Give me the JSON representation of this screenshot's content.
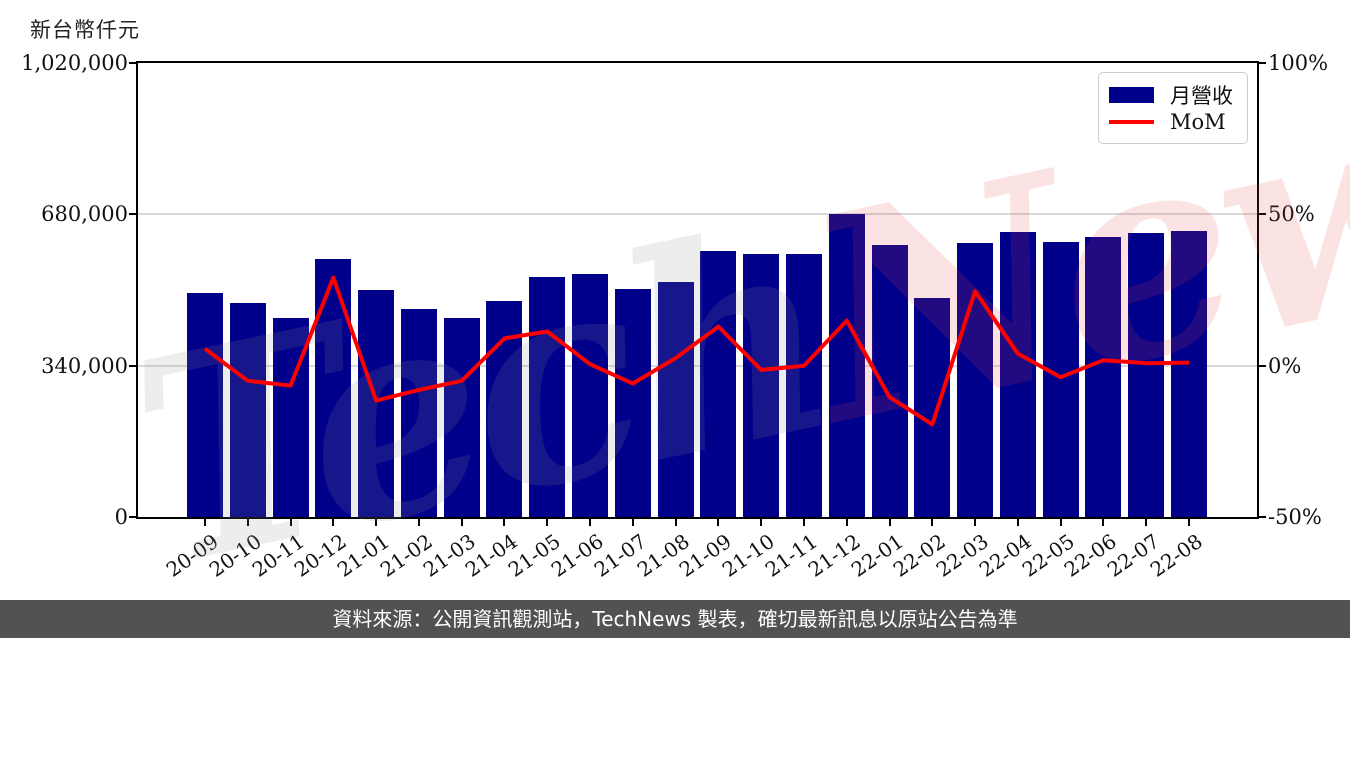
{
  "chart": {
    "unit_label": "新台幣仟元",
    "legend": {
      "bar_label": "月營收",
      "line_label": "MoM"
    },
    "colors": {
      "bar": "#00008b",
      "line": "#ff0000",
      "grid": "#d9d9d9",
      "axis": "#000000",
      "watermark_gray": "rgba(140,140,140,0.16)",
      "watermark_red": "rgba(225,70,70,0.15)",
      "footer_bg": "#535153"
    }
  },
  "chart_data": {
    "type": "combo",
    "categories": [
      "20-09",
      "20-10",
      "20-11",
      "20-12",
      "21-01",
      "21-02",
      "21-03",
      "21-04",
      "21-05",
      "21-06",
      "21-07",
      "21-08",
      "21-09",
      "21-10",
      "21-11",
      "21-12",
      "22-01",
      "22-02",
      "22-03",
      "22-04",
      "22-05",
      "22-06",
      "22-07",
      "22-08"
    ],
    "series": [
      {
        "name": "月營收",
        "type": "bar",
        "axis": "left",
        "values": [
          504000,
          480000,
          448000,
          579000,
          511000,
          468000,
          446000,
          486000,
          540000,
          545000,
          513000,
          529000,
          597000,
          590000,
          592000,
          680000,
          610000,
          493000,
          615000,
          640000,
          617000,
          628000,
          637000,
          642000
        ]
      },
      {
        "name": "MoM",
        "type": "line",
        "axis": "right",
        "values": [
          5.6,
          -5.0,
          -6.6,
          29.1,
          -11.5,
          -8.0,
          -5.0,
          9.0,
          11.3,
          0.5,
          -5.9,
          2.5,
          12.9,
          -1.4,
          0.0,
          14.9,
          -10.4,
          -19.4,
          24.6,
          4.0,
          -3.8,
          1.8,
          0.8,
          1.0
        ]
      }
    ],
    "title": "",
    "xlabel": "",
    "left_axis": {
      "label": "新台幣仟元",
      "tick_values": [
        0,
        340000,
        680000,
        1020000
      ],
      "range": [
        0,
        1020000
      ]
    },
    "right_axis": {
      "tick_values": [
        -50,
        0,
        50,
        100
      ],
      "tick_suffix": "%",
      "range": [
        -50,
        100
      ]
    },
    "grid": {
      "horizontal_at_right_pct": [
        0,
        50
      ]
    },
    "legend_position": "upper right"
  },
  "watermark": {
    "text_gray": "Tech",
    "text_red": "News"
  },
  "footer": {
    "text": "資料來源：公開資訊觀測站，TechNews 製表，確切最新訊息以原站公告為準"
  }
}
